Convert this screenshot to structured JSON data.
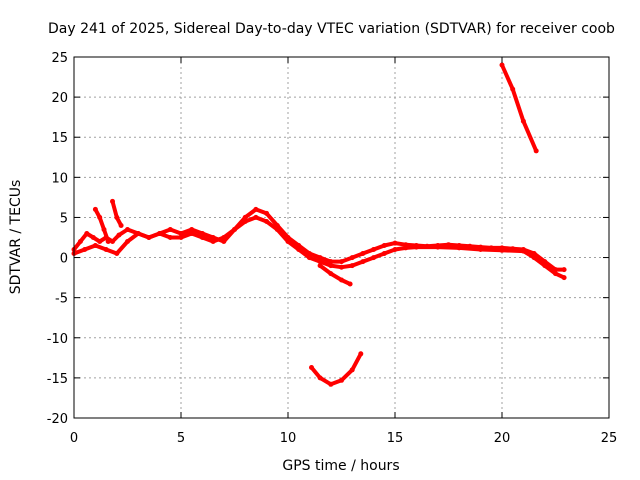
{
  "chart_data": {
    "type": "line",
    "title": "Day 241 of 2025, Sidereal Day-to-day VTEC variation (SDTVAR) for receiver coob",
    "xlabel": "GPS time / hours",
    "ylabel": "SDTVAR / TECUs",
    "xlim": [
      0,
      25
    ],
    "ylim": [
      -20,
      25
    ],
    "xticks": [
      0,
      5,
      10,
      15,
      20,
      25
    ],
    "yticks": [
      -20,
      -15,
      -10,
      -5,
      0,
      5,
      10,
      15,
      20,
      25
    ],
    "grid": true,
    "series_color": "#ff0000",
    "series": [
      {
        "name": "main-trace-upper",
        "x": [
          0.0,
          0.3,
          0.6,
          0.9,
          1.2,
          1.5,
          1.8,
          2.1,
          2.5,
          3.0,
          3.5,
          4.0,
          4.5,
          5.0,
          5.5,
          6.0,
          6.5,
          7.0,
          7.5,
          8.0,
          8.5,
          9.0,
          9.5,
          10.0,
          10.5,
          11.0,
          11.5,
          12.0,
          12.5,
          13.0,
          13.5,
          14.0,
          14.5,
          15.0,
          15.5,
          16.0,
          16.5,
          17.0,
          17.5,
          18.0,
          18.5,
          19.0,
          19.5,
          20.0,
          20.5,
          21.0,
          21.5,
          22.0,
          22.5,
          22.9
        ],
        "y": [
          1.0,
          2.0,
          3.0,
          2.5,
          2.0,
          2.5,
          2.0,
          2.8,
          3.5,
          3.0,
          2.5,
          3.0,
          3.5,
          3.0,
          3.5,
          3.0,
          2.5,
          2.0,
          3.5,
          5.0,
          6.0,
          5.5,
          4.0,
          2.5,
          1.5,
          0.5,
          0.0,
          -0.5,
          -0.5,
          0.0,
          0.5,
          1.0,
          1.5,
          1.8,
          1.6,
          1.5,
          1.4,
          1.5,
          1.6,
          1.5,
          1.4,
          1.3,
          1.2,
          1.2,
          1.1,
          1.0,
          0.5,
          -0.5,
          -1.5,
          -1.5
        ]
      },
      {
        "name": "main-trace-lower",
        "x": [
          0.0,
          0.5,
          1.0,
          1.5,
          2.0,
          2.5,
          3.0,
          3.5,
          4.0,
          4.5,
          5.0,
          5.5,
          6.0,
          6.5,
          7.0,
          7.5,
          8.0,
          8.5,
          9.0,
          9.5,
          10.0,
          10.5,
          11.0,
          11.5,
          12.0,
          12.5,
          13.0,
          13.5,
          14.0,
          14.5,
          15.0,
          15.5,
          16.0,
          17.0,
          18.0,
          19.0,
          20.0,
          21.0,
          21.5,
          22.0,
          22.5,
          22.9
        ],
        "y": [
          0.5,
          1.0,
          1.5,
          1.0,
          0.5,
          2.0,
          3.0,
          2.5,
          3.0,
          2.5,
          2.5,
          3.0,
          2.5,
          2.0,
          2.5,
          3.5,
          4.5,
          5.0,
          4.5,
          3.5,
          2.0,
          1.0,
          0.0,
          -0.5,
          -1.0,
          -1.2,
          -1.0,
          -0.5,
          0.0,
          0.5,
          1.0,
          1.2,
          1.3,
          1.3,
          1.2,
          1.0,
          0.9,
          0.8,
          0.0,
          -1.0,
          -2.0,
          -2.5
        ]
      },
      {
        "name": "early-branch-a",
        "x": [
          1.0,
          1.2,
          1.4,
          1.6
        ],
        "y": [
          6.0,
          5.0,
          3.5,
          2.0
        ]
      },
      {
        "name": "early-branch-b",
        "x": [
          1.8,
          2.0,
          2.2
        ],
        "y": [
          7.0,
          5.0,
          4.0
        ]
      },
      {
        "name": "branch-after-10h",
        "x": [
          11.5,
          12.0,
          12.5,
          12.9
        ],
        "y": [
          -1.0,
          -2.0,
          -2.8,
          -3.3
        ]
      },
      {
        "name": "dip-arc",
        "x": [
          11.1,
          11.5,
          12.0,
          12.5,
          13.0,
          13.4
        ],
        "y": [
          -13.7,
          -15.0,
          -15.8,
          -15.3,
          -14.0,
          -12.0
        ]
      },
      {
        "name": "high-segment",
        "x": [
          20.0,
          20.5,
          21.0,
          21.6
        ],
        "y": [
          24.0,
          21.0,
          17.0,
          13.3
        ]
      }
    ]
  }
}
